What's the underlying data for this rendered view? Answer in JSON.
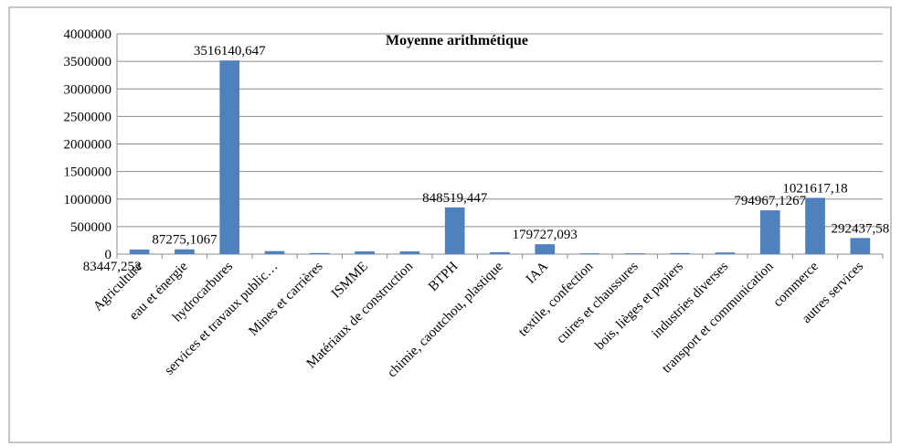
{
  "chart_data": {
    "type": "bar",
    "title": "Moyenne arithmétique",
    "categories": [
      "Agriculture",
      "eau et énergie",
      "hydrocarbures",
      "services et travaux public…",
      "Mines et carrières",
      "ISMME",
      "Matériaux de construction",
      "BTPH",
      "chimie, caoutchou, plastique",
      "IAA",
      "textile, confection",
      "cuires et chaussures",
      "bois, lièges et papiers",
      "industries diverses",
      "transport et communication",
      "commerce",
      "autres services"
    ],
    "values": [
      83447.253,
      87275.1067,
      3516140.647,
      55000,
      20000,
      50000,
      50000,
      848519.447,
      35000,
      179727.093,
      15000,
      15000,
      20000,
      30000,
      794967.1267,
      1021617.18,
      292437.58
    ],
    "value_labels": [
      "83447,253",
      "87275,1067",
      "3516140,647",
      null,
      null,
      null,
      null,
      "848519,447",
      null,
      "179727,093",
      null,
      null,
      null,
      null,
      "794967,1267",
      "1021617,18",
      "292437,58"
    ],
    "color": "#4f81bd",
    "ylim": [
      0,
      4000000
    ],
    "yticks": [
      0,
      500000,
      1000000,
      1500000,
      2000000,
      2500000,
      3000000,
      3500000,
      4000000
    ],
    "grid": true
  }
}
